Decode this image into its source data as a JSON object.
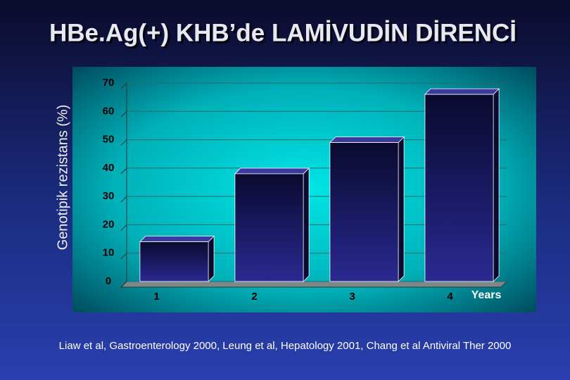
{
  "chart_data": {
    "type": "bar",
    "title": "HBe.Ag(+) KHB’de LAMİVUDİN DİRENCİ",
    "y_label": "Genotipik rezistans (%)",
    "x_label": "Years",
    "categories": [
      "1",
      "2",
      "3",
      "4"
    ],
    "values": [
      14,
      38,
      49,
      66
    ],
    "color": "#1a1a5e",
    "ylim": [
      0,
      70
    ],
    "yticks": [
      0,
      10,
      20,
      30,
      40,
      50,
      60,
      70
    ],
    "grid": true,
    "note": "Liaw et al, Gastroenterology 2000, Leung et al, Hepatology 2001, Chang et al Antiviral Ther 2000"
  }
}
